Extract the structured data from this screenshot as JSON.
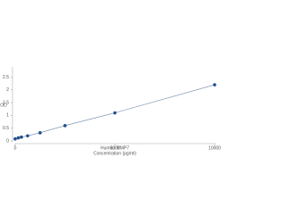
{
  "chart_data": {
    "type": "scatter",
    "x_label_1": "Human MMP7",
    "x_label_2": "Concentration (pg/ml)",
    "y_label": "OD",
    "x": [
      0,
      156,
      312,
      625,
      1250,
      2500,
      5000,
      10000
    ],
    "series": [
      {
        "color": "#1f4e8c",
        "values": [
          0.08,
          0.12,
          0.15,
          0.2,
          0.32,
          0.6,
          1.1,
          2.2
        ]
      }
    ],
    "xlim": [
      0,
      10000
    ],
    "xticks": [
      0,
      5000,
      10000
    ],
    "ylim": [
      0,
      2.9
    ],
    "yticks": [
      0,
      0.5,
      1,
      1.5,
      2,
      2.5
    ],
    "line": true,
    "grid": false
  }
}
